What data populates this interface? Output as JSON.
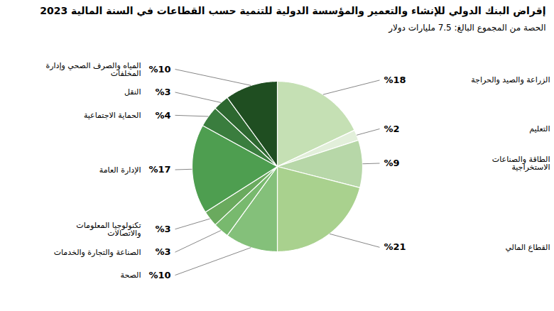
{
  "chart_data": {
    "type": "pie",
    "title": "إقراض البنك الدولي للإنشاء والتعمير والمؤسسة الدولية للتنمية حسب القطاعات في السنة المالية 2023",
    "subtitle": "الحصة من المجموع البالغ: 7.5 مليارات دولار",
    "categories": [
      "الزراعة والصيد والحراجة",
      "التعليم",
      "الطاقة والصناعات الاستخراجية",
      "القطاع المالي",
      "الصحة",
      "الصناعة والتجارة والخدمات",
      "تكنولوجيا المعلومات والاتصالات",
      "الإدارة العامة",
      "الحماية الاجتماعية",
      "النقل",
      "المياه والصرف الصحي وإدارة المخلفات"
    ],
    "values": [
      18,
      2,
      9,
      21,
      10,
      3,
      3,
      17,
      4,
      3,
      10
    ],
    "value_labels": [
      "%18",
      "%2",
      "%9",
      "%21",
      "%10",
      "%3",
      "%3",
      "%17",
      "%4",
      "%3",
      "%10"
    ],
    "colors": [
      "#c5e0b4",
      "#e2efda",
      "#b7d7a8",
      "#a9d18e",
      "#84c07a",
      "#78b96e",
      "#6aaa5e",
      "#4e9e50",
      "#3a7d3e",
      "#2d6830",
      "#1f4e21"
    ],
    "data_labels": true
  }
}
